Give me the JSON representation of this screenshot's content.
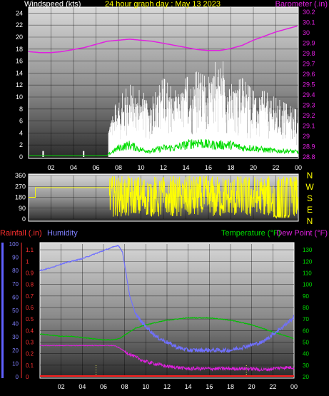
{
  "chart_data": [
    {
      "type": "line",
      "title": "24 hour graph day : May 13 2023",
      "ylabel_left": "Windspeed (kts)",
      "ylabel_right": "Barometer (.in)",
      "x_ticks": [
        "02",
        "04",
        "06",
        "08",
        "10",
        "12",
        "14",
        "16",
        "18",
        "20",
        "22",
        "00"
      ],
      "ylim_left": [
        0,
        25
      ],
      "left_ticks": [
        "0",
        "2",
        "4",
        "6",
        "8",
        "10",
        "12",
        "14",
        "16",
        "18",
        "20",
        "22",
        "24"
      ],
      "ylim_right": [
        28.8,
        30.25
      ],
      "right_ticks": [
        "28.8",
        "28.9",
        "29",
        "29.1",
        "29.2",
        "29.3",
        "29.4",
        "29.5",
        "29.6",
        "29.7",
        "29.8",
        "29.9",
        "30",
        "30.1",
        "30.2"
      ],
      "colors": {
        "gust": "#ffffff",
        "average": "#00dd00",
        "barometer": "#e020e0",
        "title": "#ffff00"
      },
      "series": [
        {
          "name": "Barometer",
          "color": "#e020e0",
          "x": [
            0,
            1,
            2,
            3,
            4,
            5,
            6,
            7,
            8,
            9,
            10,
            11,
            12,
            13,
            14,
            15,
            16,
            17,
            18,
            19,
            20,
            21,
            22,
            23,
            24
          ],
          "values": [
            29.82,
            29.81,
            29.81,
            29.82,
            29.84,
            29.86,
            29.89,
            29.92,
            29.93,
            29.94,
            29.93,
            29.92,
            29.9,
            29.88,
            29.86,
            29.84,
            29.83,
            29.83,
            29.85,
            29.88,
            29.93,
            29.97,
            30.01,
            30.04,
            30.07
          ]
        },
        {
          "name": "Gust envelope",
          "color": "#ffffff",
          "x": [
            0,
            1,
            2,
            3,
            4,
            5,
            6,
            7,
            8,
            9,
            10,
            11,
            12,
            13,
            14,
            15,
            16,
            17,
            18,
            19,
            20,
            21,
            22,
            23,
            24
          ],
          "values": [
            0,
            1,
            0,
            0,
            0,
            1,
            0,
            5,
            9,
            11,
            10,
            9,
            12,
            10,
            12,
            13,
            12,
            16,
            11,
            12,
            10,
            10,
            9,
            8,
            7
          ]
        },
        {
          "name": "Average speed",
          "color": "#00dd00",
          "x": [
            0,
            1,
            2,
            3,
            4,
            5,
            6,
            7,
            8,
            9,
            10,
            11,
            12,
            13,
            14,
            15,
            16,
            17,
            18,
            19,
            20,
            21,
            22,
            23,
            24
          ],
          "values": [
            0.2,
            0.2,
            0.2,
            0.2,
            0.2,
            0.2,
            0.2,
            0.3,
            1.5,
            2,
            1.2,
            1,
            1.5,
            1.5,
            2,
            2.5,
            2,
            2,
            2,
            1.5,
            1.5,
            1.2,
            1,
            1,
            0.8
          ]
        }
      ]
    },
    {
      "type": "line",
      "ylim": [
        0,
        360
      ],
      "left_ticks": [
        "0",
        "90",
        "180",
        "270",
        "360"
      ],
      "right_labels": [
        "N",
        "W",
        "S",
        "E",
        "N"
      ],
      "colors": {
        "direction": "#ffff00"
      },
      "series": [
        {
          "name": "Wind direction",
          "color": "#ffff00",
          "x": [
            0,
            0.6,
            0.6,
            7.2,
            7.2,
            8,
            9,
            10,
            11,
            12,
            13,
            14,
            15,
            16,
            17,
            18,
            19,
            20,
            21,
            22,
            23,
            24
          ],
          "values": [
            180,
            180,
            260,
            260,
            20,
            300,
            60,
            280,
            100,
            240,
            140,
            200,
            120,
            260,
            80,
            300,
            60,
            280,
            40,
            320,
            20,
            60
          ]
        }
      ]
    },
    {
      "type": "line",
      "ylabel_left_1": "Rainfall (.in)",
      "ylabel_left_2": "Humidity",
      "ylabel_right_1": "Temperature (°F)",
      "ylabel_right_2": "Dew Point (°F)",
      "x_ticks": [
        "02",
        "04",
        "06",
        "08",
        "10",
        "12",
        "14",
        "16",
        "18",
        "20",
        "22",
        "00"
      ],
      "humidity_ticks": [
        "0",
        "10",
        "20",
        "30",
        "40",
        "50",
        "60",
        "70",
        "80",
        "90",
        "100"
      ],
      "rain_ticks": [
        "0",
        "0.1",
        "0.2",
        "0.3",
        "0.4",
        "0.5",
        "0.6",
        "0.7",
        "0.8",
        "0.9",
        "1",
        "1.1"
      ],
      "temp_ticks": [
        "20",
        "30",
        "40",
        "50",
        "60",
        "70",
        "80",
        "90",
        "100",
        "110",
        "120",
        "130"
      ],
      "ylim_humidity": [
        0,
        100
      ],
      "ylim_rain": [
        0,
        1.15
      ],
      "ylim_temp": [
        20,
        135
      ],
      "colors": {
        "humidity": "#7070ff",
        "temperature": "#00c000",
        "dewpoint": "#e020e0",
        "rain": "#ff2020",
        "rain_label": "#ff3030"
      },
      "series": [
        {
          "name": "Humidity",
          "color": "#7070ff",
          "x": [
            0,
            1,
            2,
            3,
            4,
            5,
            6,
            7,
            7.4,
            7.8,
            8.5,
            9,
            9.5,
            10,
            11,
            12,
            13,
            14,
            15,
            16,
            17,
            18,
            19,
            20,
            21,
            22,
            23,
            24
          ],
          "values": [
            80,
            82,
            85,
            87,
            89,
            92,
            95,
            98,
            99,
            94,
            60,
            48,
            42,
            38,
            30,
            26,
            22,
            20,
            20,
            20,
            20,
            20,
            22,
            24,
            26,
            32,
            38,
            45
          ]
        },
        {
          "name": "Temperature",
          "color": "#00c000",
          "x": [
            0,
            1,
            2,
            3,
            4,
            5,
            6,
            7,
            7.5,
            8,
            9,
            10,
            11,
            12,
            13,
            14,
            15,
            16,
            17,
            18,
            19,
            20,
            21,
            22,
            23,
            24
          ],
          "values": [
            57,
            56,
            55,
            55,
            54,
            53,
            52,
            52,
            53,
            56,
            62,
            65,
            67,
            69,
            70,
            71,
            71,
            71,
            70,
            69,
            67,
            65,
            62,
            59,
            56,
            53
          ]
        },
        {
          "name": "Dew Point",
          "color": "#e020e0",
          "x": [
            0,
            1,
            2,
            3,
            4,
            5,
            6,
            7,
            7.5,
            8,
            9,
            10,
            11,
            12,
            13,
            14,
            15,
            16,
            17,
            18,
            19,
            20,
            21,
            22,
            23,
            24
          ],
          "values": [
            47,
            47,
            47,
            47,
            47,
            47,
            47,
            47,
            45,
            42,
            37,
            33,
            31,
            29,
            28,
            27,
            27,
            27,
            27,
            27,
            27,
            27,
            26,
            27,
            28,
            28
          ]
        },
        {
          "name": "Rainfall",
          "color": "#ff2020",
          "x": [
            0,
            24
          ],
          "values": [
            0,
            0
          ]
        }
      ]
    }
  ]
}
